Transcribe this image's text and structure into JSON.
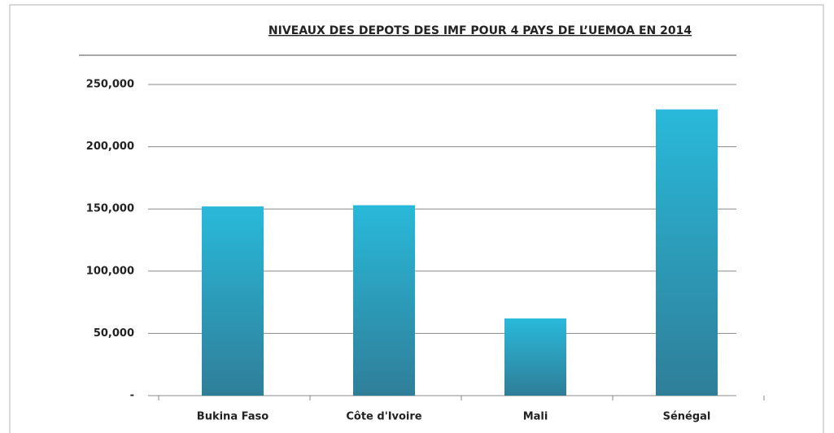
{
  "chart_data": {
    "type": "bar",
    "title": "NIVEAUX DES DEPOTS DES IMF POUR 4 PAYS DE L’UEMOA EN 2014",
    "categories": [
      "Bukina Faso",
      "Côte d'Ivoire",
      "Mali",
      "Sénégal"
    ],
    "values": [
      152000,
      153000,
      62000,
      230000
    ],
    "color": [
      "#29b9da",
      "#2f7e98"
    ],
    "ylim": [
      0,
      250000
    ],
    "yticks": [
      {
        "value": 0,
        "label": "-"
      },
      {
        "value": 50000,
        "label": "50,000"
      },
      {
        "value": 100000,
        "label": "100,000"
      },
      {
        "value": 150000,
        "label": "150,000"
      },
      {
        "value": 200000,
        "label": "200,000"
      },
      {
        "value": 250000,
        "label": "250,000"
      }
    ],
    "grid": true
  }
}
